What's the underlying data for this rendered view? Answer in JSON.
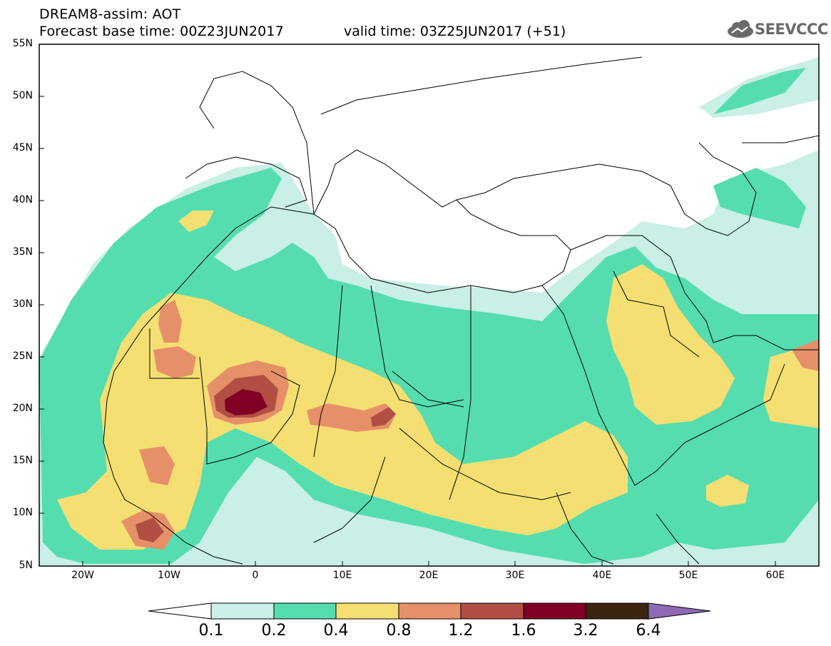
{
  "header": {
    "title": "DREAM8-assim: AOT",
    "base_time": "Forecast base time: 00Z23JUN2017",
    "valid_time": "valid time: 03Z25JUN2017 (+51)",
    "logo_text": "SEEVCCC"
  },
  "map": {
    "lat_labels": [
      "55N",
      "50N",
      "45N",
      "40N",
      "35N",
      "30N",
      "25N",
      "20N",
      "15N",
      "10N",
      "5N"
    ],
    "lon_labels": [
      "20W",
      "10W",
      "0",
      "10E",
      "20E",
      "30E",
      "40E",
      "50E",
      "60E"
    ],
    "extent": {
      "lon_min": -25,
      "lon_max": 65,
      "lat_min": 5,
      "lat_max": 55
    },
    "field": "Aerosol optical thickness"
  },
  "colorbar": {
    "labels": [
      "0.1",
      "0.2",
      "0.4",
      "0.8",
      "1.2",
      "1.6",
      "3.2",
      "6.4"
    ],
    "colors": [
      "#ffffff",
      "#c9efe6",
      "#55ddb0",
      "#f5df72",
      "#e59068",
      "#b24f43",
      "#800026",
      "#3b2410",
      "#8e6ab5"
    ]
  }
}
